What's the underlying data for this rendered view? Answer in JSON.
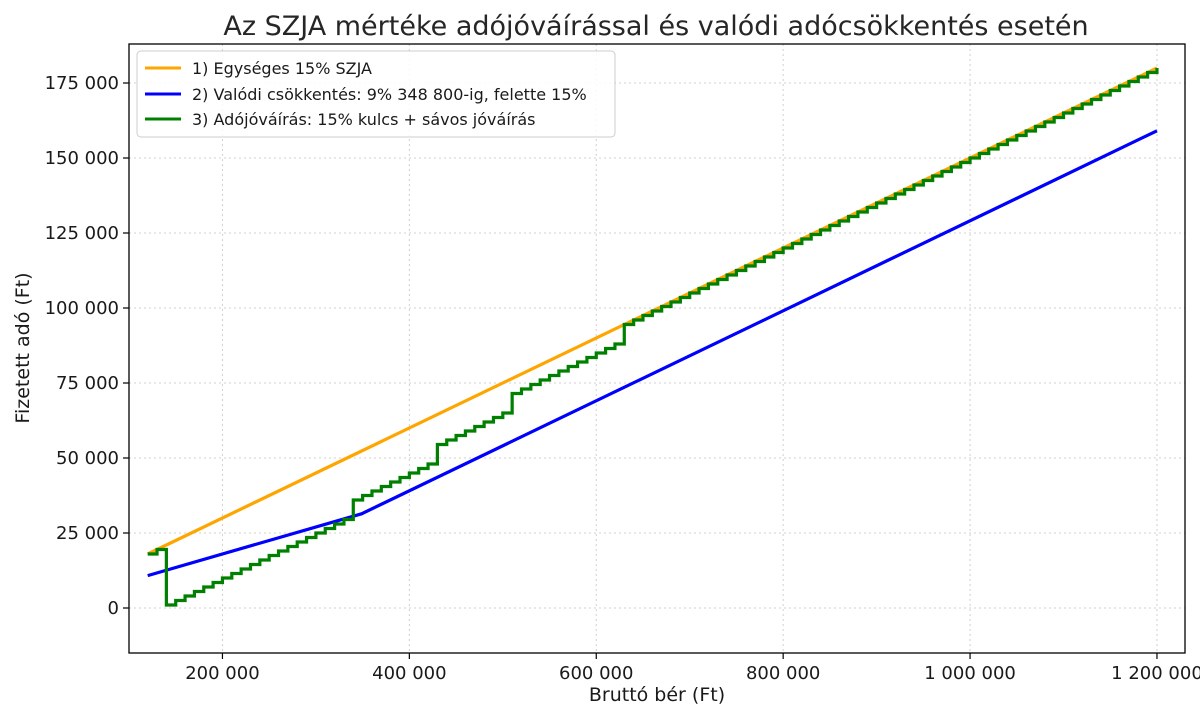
{
  "chart_data": {
    "type": "line",
    "title": "Az SZJA mértéke adójóváírással és valódi adócsökkentés esetén",
    "xlabel": "Bruttó bér (Ft)",
    "ylabel": "Fizetett adó (Ft)",
    "xlim": [
      100000,
      1230000
    ],
    "ylim": [
      -15000,
      188000
    ],
    "x_ticks": [
      200000,
      400000,
      600000,
      800000,
      1000000,
      1200000
    ],
    "x_tick_labels": [
      "200 000",
      "400 000",
      "600 000",
      "800 000",
      "1 000 000",
      "1 200 000"
    ],
    "y_ticks": [
      0,
      25000,
      50000,
      75000,
      100000,
      125000,
      150000,
      175000
    ],
    "y_tick_labels": [
      "0",
      "25 000",
      "50 000",
      "75 000",
      "100 000",
      "125 000",
      "150 000",
      "175 000"
    ],
    "grid": true,
    "legend_position": "top-left",
    "series": [
      {
        "name": "1) Egységes 15% SZJA",
        "color": "#FFA500",
        "style": "line",
        "x": [
          120000,
          1200000
        ],
        "y": [
          18000,
          180000
        ]
      },
      {
        "name": "2) Valódi csökkentés: 9% 348 800-ig, felette 15%",
        "color": "#0000FF",
        "style": "line",
        "x": [
          120000,
          348800,
          1200000
        ],
        "y": [
          10800,
          31392,
          159072
        ]
      },
      {
        "name": "3) Adójóváírás: 15% kulcs + sávos jóváírás",
        "color": "#008000",
        "style": "step",
        "x": [
          120000,
          130000,
          140000,
          150000,
          160000,
          170000,
          180000,
          190000,
          200000,
          210000,
          220000,
          230000,
          240000,
          250000,
          260000,
          270000,
          280000,
          290000,
          300000,
          310000,
          320000,
          330000,
          340000,
          350000,
          360000,
          370000,
          380000,
          390000,
          400000,
          410000,
          420000,
          430000,
          440000,
          450000,
          460000,
          470000,
          480000,
          490000,
          500000,
          510000,
          520000,
          530000,
          540000,
          550000,
          560000,
          570000,
          580000,
          590000,
          600000,
          610000,
          620000,
          630000,
          640000,
          650000,
          660000,
          670000,
          680000,
          690000,
          700000,
          710000,
          720000,
          730000,
          740000,
          750000,
          760000,
          770000,
          780000,
          790000,
          800000,
          810000,
          820000,
          830000,
          840000,
          850000,
          860000,
          870000,
          880000,
          890000,
          900000,
          910000,
          920000,
          930000,
          940000,
          950000,
          960000,
          970000,
          980000,
          990000,
          1000000,
          1010000,
          1020000,
          1030000,
          1040000,
          1050000,
          1060000,
          1070000,
          1080000,
          1090000,
          1100000,
          1110000,
          1120000,
          1130000,
          1140000,
          1150000,
          1160000,
          1170000,
          1180000,
          1190000,
          1200000
        ],
        "y": [
          18000,
          19500,
          1000,
          2500,
          4000,
          5500,
          7000,
          8500,
          10000,
          11500,
          13000,
          14500,
          16000,
          17500,
          19000,
          20500,
          22000,
          23500,
          25000,
          26500,
          28000,
          29500,
          36000,
          37500,
          39000,
          40500,
          42000,
          43500,
          45000,
          46500,
          48000,
          54500,
          56000,
          57500,
          59000,
          60500,
          62000,
          63500,
          65000,
          71500,
          73000,
          74500,
          76000,
          77500,
          79000,
          80500,
          82000,
          83500,
          85000,
          86500,
          88000,
          94500,
          96000,
          97500,
          99000,
          100500,
          102000,
          103500,
          105000,
          106500,
          108000,
          109500,
          111000,
          112500,
          114000,
          115500,
          117000,
          118500,
          120000,
          121500,
          123000,
          124500,
          126000,
          127500,
          129000,
          130500,
          132000,
          133500,
          135000,
          136500,
          138000,
          139500,
          141000,
          142500,
          144000,
          145500,
          147000,
          148500,
          150000,
          151500,
          153000,
          154500,
          156000,
          157500,
          159000,
          160500,
          162000,
          163500,
          165000,
          166500,
          168000,
          169500,
          171000,
          172500,
          174000,
          175500,
          177000,
          178500,
          180000
        ]
      }
    ]
  }
}
